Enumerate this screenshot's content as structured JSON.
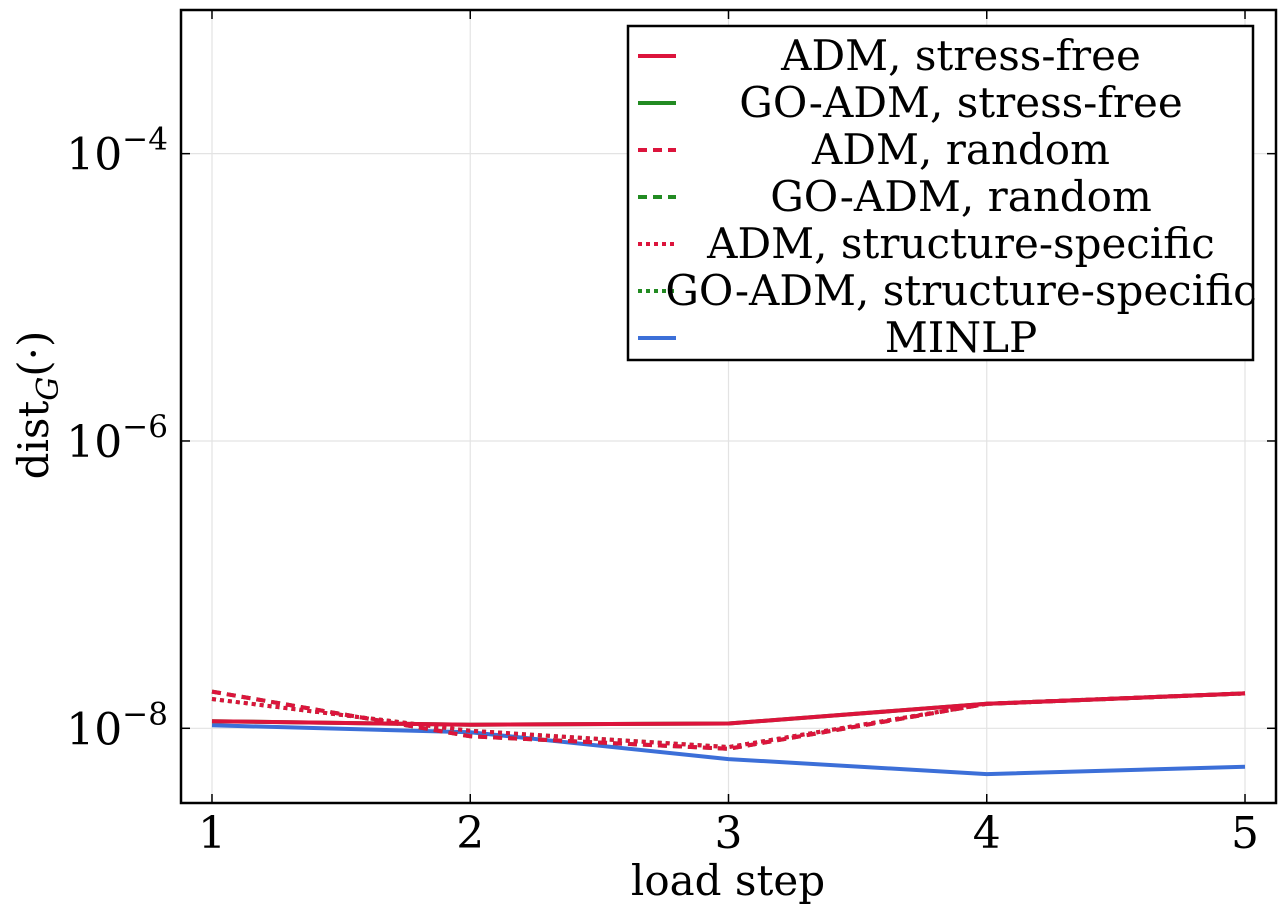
{
  "chart_data": {
    "type": "line",
    "title": "",
    "xlabel": "load step",
    "ylabel": "dist",
    "ylabel_subscript": "G",
    "ylabel_suffix": "(·)",
    "y_scale": "log",
    "xlim": [
      0.88,
      5.12
    ],
    "ylim_log10": [
      -8.52,
      -3.0
    ],
    "x_ticks": [
      1,
      2,
      3,
      4,
      5
    ],
    "x_tick_labels": [
      "1",
      "2",
      "3",
      "4",
      "5"
    ],
    "y_ticks": [
      {
        "value": 1e-08,
        "base": "10",
        "exp": "−8"
      },
      {
        "value": 1e-06,
        "base": "10",
        "exp": "−6"
      },
      {
        "value": 0.0001,
        "base": "10",
        "exp": "−4"
      }
    ],
    "grid": true,
    "legend_position": "top-right",
    "x": [
      1,
      2,
      3,
      4,
      5
    ],
    "series": [
      {
        "name": "ADM, stress-free",
        "color": "#dc143c",
        "dash": "solid",
        "values": [
          1.12e-08,
          1.06e-08,
          1.08e-08,
          1.48e-08,
          1.75e-08
        ]
      },
      {
        "name": "GO-ADM, stress-free",
        "color": "#228b22",
        "dash": "solid",
        "values": [
          1.12e-08,
          1.06e-08,
          1.08e-08,
          1.48e-08,
          1.75e-08
        ]
      },
      {
        "name": "ADM, random",
        "color": "#dc143c",
        "dash": "dashed",
        "values": [
          1.8e-08,
          8.8e-09,
          7.2e-09,
          1.48e-08,
          1.75e-08
        ]
      },
      {
        "name": "GO-ADM, random",
        "color": "#228b22",
        "dash": "dashed",
        "values": [
          1.8e-08,
          8.8e-09,
          7.2e-09,
          1.48e-08,
          1.75e-08
        ]
      },
      {
        "name": "ADM, structure-specific",
        "color": "#dc143c",
        "dash": "dotted",
        "values": [
          1.6e-08,
          9.6e-09,
          7.4e-09,
          1.48e-08,
          1.75e-08
        ]
      },
      {
        "name": "GO-ADM, structure-specific",
        "color": "#228b22",
        "dash": "dotted",
        "values": [
          1.6e-08,
          9.6e-09,
          7.4e-09,
          1.48e-08,
          1.75e-08
        ]
      },
      {
        "name": "MINLP",
        "color": "#3c6fd8",
        "dash": "solid",
        "values": [
          1.05e-08,
          9.4e-09,
          6.1e-09,
          4.8e-09,
          5.4e-09
        ]
      }
    ],
    "draw_order": [
      6,
      1,
      3,
      5,
      0,
      2,
      4
    ]
  }
}
